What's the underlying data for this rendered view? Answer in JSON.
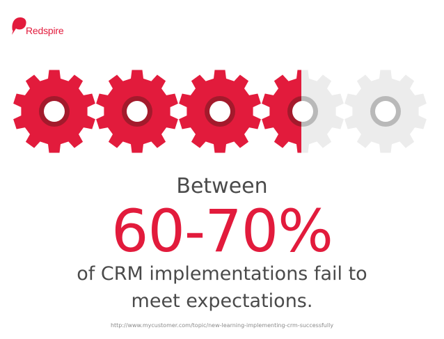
{
  "brand": {
    "name": "Redspire",
    "color": "#e21b3c"
  },
  "gears": {
    "count": 5,
    "filled": 3.5,
    "fill_color": "#e21b3c",
    "empty_color": "#ececec",
    "hole_ring_filled": "#a31a2c",
    "hole_ring_empty": "#b9b9b9"
  },
  "content": {
    "intro": "Between",
    "stat": "60-70%",
    "line1": "of CRM implementations fail to",
    "line2": "meet expectations."
  },
  "source": "http://www.mycustomer.com/topic/new-learning-implementing-crm-successfully"
}
